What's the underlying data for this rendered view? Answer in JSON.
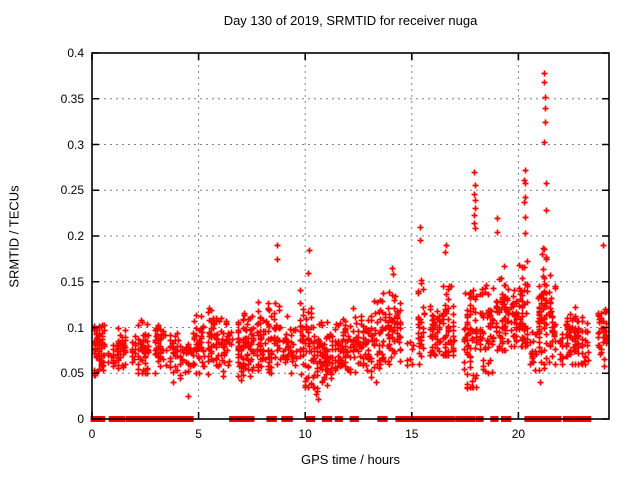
{
  "chart_data": {
    "type": "scatter",
    "title": "Day 130 of 2019, SRMTID for receiver nuga",
    "xlabel": "GPS time / hours",
    "ylabel": "SRMTID / TECUs",
    "xlim": [
      0,
      24.25
    ],
    "ylim": [
      0,
      0.4
    ],
    "xticks": {
      "values": [
        0,
        5,
        10,
        15,
        20
      ],
      "labels": [
        "0",
        "5",
        "10",
        "15",
        "20"
      ]
    },
    "yticks": {
      "values": [
        0,
        0.05,
        0.1,
        0.15,
        0.2,
        0.25,
        0.3,
        0.35,
        0.4
      ],
      "labels": [
        "0",
        "0.05",
        "0.1",
        "0.15",
        "0.2",
        "0.25",
        "0.3",
        "0.35",
        "0.4"
      ]
    },
    "grid": true,
    "grid_color": "#808080",
    "marker": {
      "shape": "plus",
      "color": "#ff0000"
    },
    "zero_marker": {
      "shape": "filled-square",
      "color": "#ff0000"
    },
    "clusters_format": [
      "t_start_hours",
      "t_end_hours",
      "n_points",
      "y_min",
      "y_max",
      "y_mode"
    ],
    "clusters": [
      [
        0.05,
        0.6,
        65,
        0.048,
        0.125,
        0.075
      ],
      [
        0.7,
        1.05,
        14,
        0.05,
        0.1,
        0.07
      ],
      [
        1.15,
        1.6,
        40,
        0.048,
        0.115,
        0.075
      ],
      [
        1.8,
        2.05,
        14,
        0.055,
        0.098,
        0.072
      ],
      [
        2.1,
        2.65,
        55,
        0.05,
        0.13,
        0.08
      ],
      [
        2.9,
        3.5,
        45,
        0.05,
        0.12,
        0.075
      ],
      [
        3.6,
        4.3,
        40,
        0.04,
        0.115,
        0.07
      ],
      [
        4.35,
        4.65,
        18,
        0.05,
        0.1,
        0.07
      ],
      [
        4.7,
        5.3,
        50,
        0.05,
        0.143,
        0.08
      ],
      [
        5.4,
        6.6,
        85,
        0.045,
        0.145,
        0.085
      ],
      [
        6.8,
        7.6,
        85,
        0.04,
        0.15,
        0.08
      ],
      [
        7.7,
        8.45,
        65,
        0.05,
        0.155,
        0.085
      ],
      [
        8.5,
        8.85,
        22,
        0.06,
        0.175,
        0.09
      ],
      [
        8.9,
        9.6,
        45,
        0.05,
        0.145,
        0.08
      ],
      [
        9.7,
        10.45,
        65,
        0.035,
        0.185,
        0.078
      ],
      [
        10.5,
        11.3,
        75,
        0.03,
        0.12,
        0.07
      ],
      [
        11.35,
        12.15,
        65,
        0.05,
        0.135,
        0.08
      ],
      [
        12.2,
        13.0,
        70,
        0.05,
        0.15,
        0.085
      ],
      [
        13.05,
        13.8,
        55,
        0.04,
        0.155,
        0.09
      ],
      [
        13.85,
        14.5,
        60,
        0.06,
        0.165,
        0.1
      ],
      [
        14.6,
        15.1,
        8,
        0.05,
        0.1,
        0.075
      ],
      [
        15.25,
        15.6,
        28,
        0.06,
        0.205,
        0.1
      ],
      [
        15.8,
        16.35,
        42,
        0.065,
        0.145,
        0.095
      ],
      [
        16.4,
        17.0,
        55,
        0.07,
        0.19,
        0.1
      ],
      [
        17.4,
        18.05,
        70,
        0.035,
        0.21,
        0.09
      ],
      [
        18.15,
        18.85,
        55,
        0.05,
        0.175,
        0.095
      ],
      [
        18.9,
        19.55,
        75,
        0.075,
        0.215,
        0.11
      ],
      [
        19.6,
        19.95,
        35,
        0.08,
        0.175,
        0.11
      ],
      [
        20.0,
        20.45,
        50,
        0.08,
        0.23,
        0.12
      ],
      [
        20.5,
        20.85,
        18,
        0.05,
        0.12,
        0.08
      ],
      [
        20.9,
        21.35,
        65,
        0.04,
        0.21,
        0.12
      ],
      [
        21.4,
        21.75,
        35,
        0.055,
        0.19,
        0.1
      ],
      [
        21.9,
        22.1,
        12,
        0.06,
        0.12,
        0.08
      ],
      [
        22.2,
        22.85,
        65,
        0.06,
        0.155,
        0.092
      ],
      [
        22.9,
        23.3,
        26,
        0.045,
        0.12,
        0.085
      ],
      [
        23.7,
        24.15,
        40,
        0.055,
        0.135,
        0.09
      ]
    ],
    "outliers_format": [
      "t_hours",
      "srmtid_tecus"
    ],
    "outliers": [
      [
        8.7,
        0.19
      ],
      [
        8.68,
        0.175
      ],
      [
        10.2,
        0.185
      ],
      [
        10.15,
        0.16
      ],
      [
        14.05,
        0.165
      ],
      [
        14.1,
        0.158
      ],
      [
        15.4,
        0.21
      ],
      [
        15.38,
        0.196
      ],
      [
        16.6,
        0.19
      ],
      [
        16.55,
        0.182
      ],
      [
        17.93,
        0.27
      ],
      [
        17.95,
        0.256
      ],
      [
        17.9,
        0.246
      ],
      [
        17.95,
        0.239
      ],
      [
        17.97,
        0.231
      ],
      [
        17.93,
        0.223
      ],
      [
        17.9,
        0.214
      ],
      [
        17.96,
        0.209
      ],
      [
        19.0,
        0.22
      ],
      [
        19.02,
        0.204
      ],
      [
        20.3,
        0.272
      ],
      [
        20.28,
        0.261
      ],
      [
        20.3,
        0.258
      ],
      [
        20.32,
        0.243
      ],
      [
        20.28,
        0.237
      ],
      [
        20.3,
        0.221
      ],
      [
        20.33,
        0.203
      ],
      [
        21.22,
        0.378
      ],
      [
        21.22,
        0.368
      ],
      [
        21.24,
        0.352
      ],
      [
        21.23,
        0.34
      ],
      [
        21.25,
        0.325
      ],
      [
        21.22,
        0.303
      ],
      [
        21.3,
        0.258
      ],
      [
        21.28,
        0.228
      ],
      [
        23.95,
        0.19
      ],
      [
        4.5,
        0.025
      ],
      [
        10.52,
        0.027
      ],
      [
        10.6,
        0.022
      ],
      [
        13.3,
        0.04
      ],
      [
        17.6,
        0.034
      ],
      [
        21.0,
        0.04
      ]
    ],
    "zero_segments_format": [
      "t_start_hours",
      "t_end_hours"
    ],
    "zero_segments": [
      [
        0.05,
        0.5
      ],
      [
        0.9,
        1.45
      ],
      [
        1.7,
        2.4
      ],
      [
        2.5,
        3.0
      ],
      [
        3.2,
        3.35
      ],
      [
        3.5,
        3.65
      ],
      [
        3.8,
        4.05
      ],
      [
        4.15,
        4.3
      ],
      [
        4.4,
        4.65
      ],
      [
        6.55,
        7.05
      ],
      [
        7.2,
        7.5
      ],
      [
        8.3,
        8.55
      ],
      [
        9.0,
        9.3
      ],
      [
        10.15,
        10.35
      ],
      [
        10.9,
        11.15
      ],
      [
        11.5,
        11.65
      ],
      [
        12.2,
        12.4
      ],
      [
        13.5,
        13.75
      ],
      [
        14.35,
        15.35
      ],
      [
        15.5,
        16.5
      ],
      [
        16.7,
        16.9
      ],
      [
        17.15,
        17.45
      ],
      [
        17.55,
        17.85
      ],
      [
        18.1,
        18.25
      ],
      [
        18.8,
        18.95
      ],
      [
        19.3,
        19.55
      ],
      [
        20.4,
        20.65
      ],
      [
        20.75,
        21.35
      ],
      [
        21.45,
        21.9
      ],
      [
        22.2,
        22.5
      ],
      [
        22.6,
        22.95
      ],
      [
        23.1,
        23.3
      ]
    ]
  }
}
